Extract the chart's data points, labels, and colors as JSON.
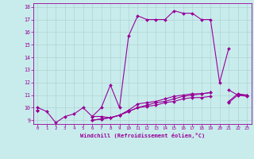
{
  "xlabel": "Windchill (Refroidissement éolien,°C)",
  "background_color": "#c8ecec",
  "line_color": "#990099",
  "grid_color": "#aaccaa",
  "xmin": 0,
  "xmax": 23,
  "ymin": 9,
  "ymax": 18,
  "hours": [
    0,
    1,
    2,
    3,
    4,
    5,
    6,
    7,
    8,
    9,
    10,
    11,
    12,
    13,
    14,
    15,
    16,
    17,
    18,
    19,
    20,
    21,
    22,
    23
  ],
  "line1": [
    10.0,
    9.7,
    8.8,
    9.3,
    9.5,
    10.0,
    9.3,
    10.0,
    11.8,
    10.0,
    15.7,
    17.3,
    17.0,
    17.0,
    17.0,
    17.7,
    17.5,
    17.5,
    17.0,
    17.0,
    12.0,
    14.7,
    null,
    null
  ],
  "line2": [
    9.8,
    null,
    null,
    null,
    null,
    null,
    9.3,
    9.3,
    9.2,
    9.4,
    9.8,
    10.3,
    10.4,
    10.5,
    10.7,
    10.9,
    11.0,
    11.1,
    11.1,
    11.2,
    null,
    11.4,
    11.0,
    11.0
  ],
  "line3": [
    9.8,
    null,
    null,
    null,
    null,
    null,
    9.0,
    9.1,
    9.2,
    9.4,
    9.7,
    10.0,
    10.2,
    10.4,
    10.5,
    10.7,
    10.9,
    11.0,
    11.1,
    11.2,
    null,
    10.5,
    11.1,
    11.0
  ],
  "line4": [
    9.8,
    null,
    null,
    null,
    null,
    null,
    9.0,
    9.1,
    9.2,
    9.4,
    9.7,
    10.0,
    10.1,
    10.2,
    10.4,
    10.5,
    10.7,
    10.8,
    10.8,
    10.9,
    null,
    10.4,
    11.0,
    10.9
  ]
}
